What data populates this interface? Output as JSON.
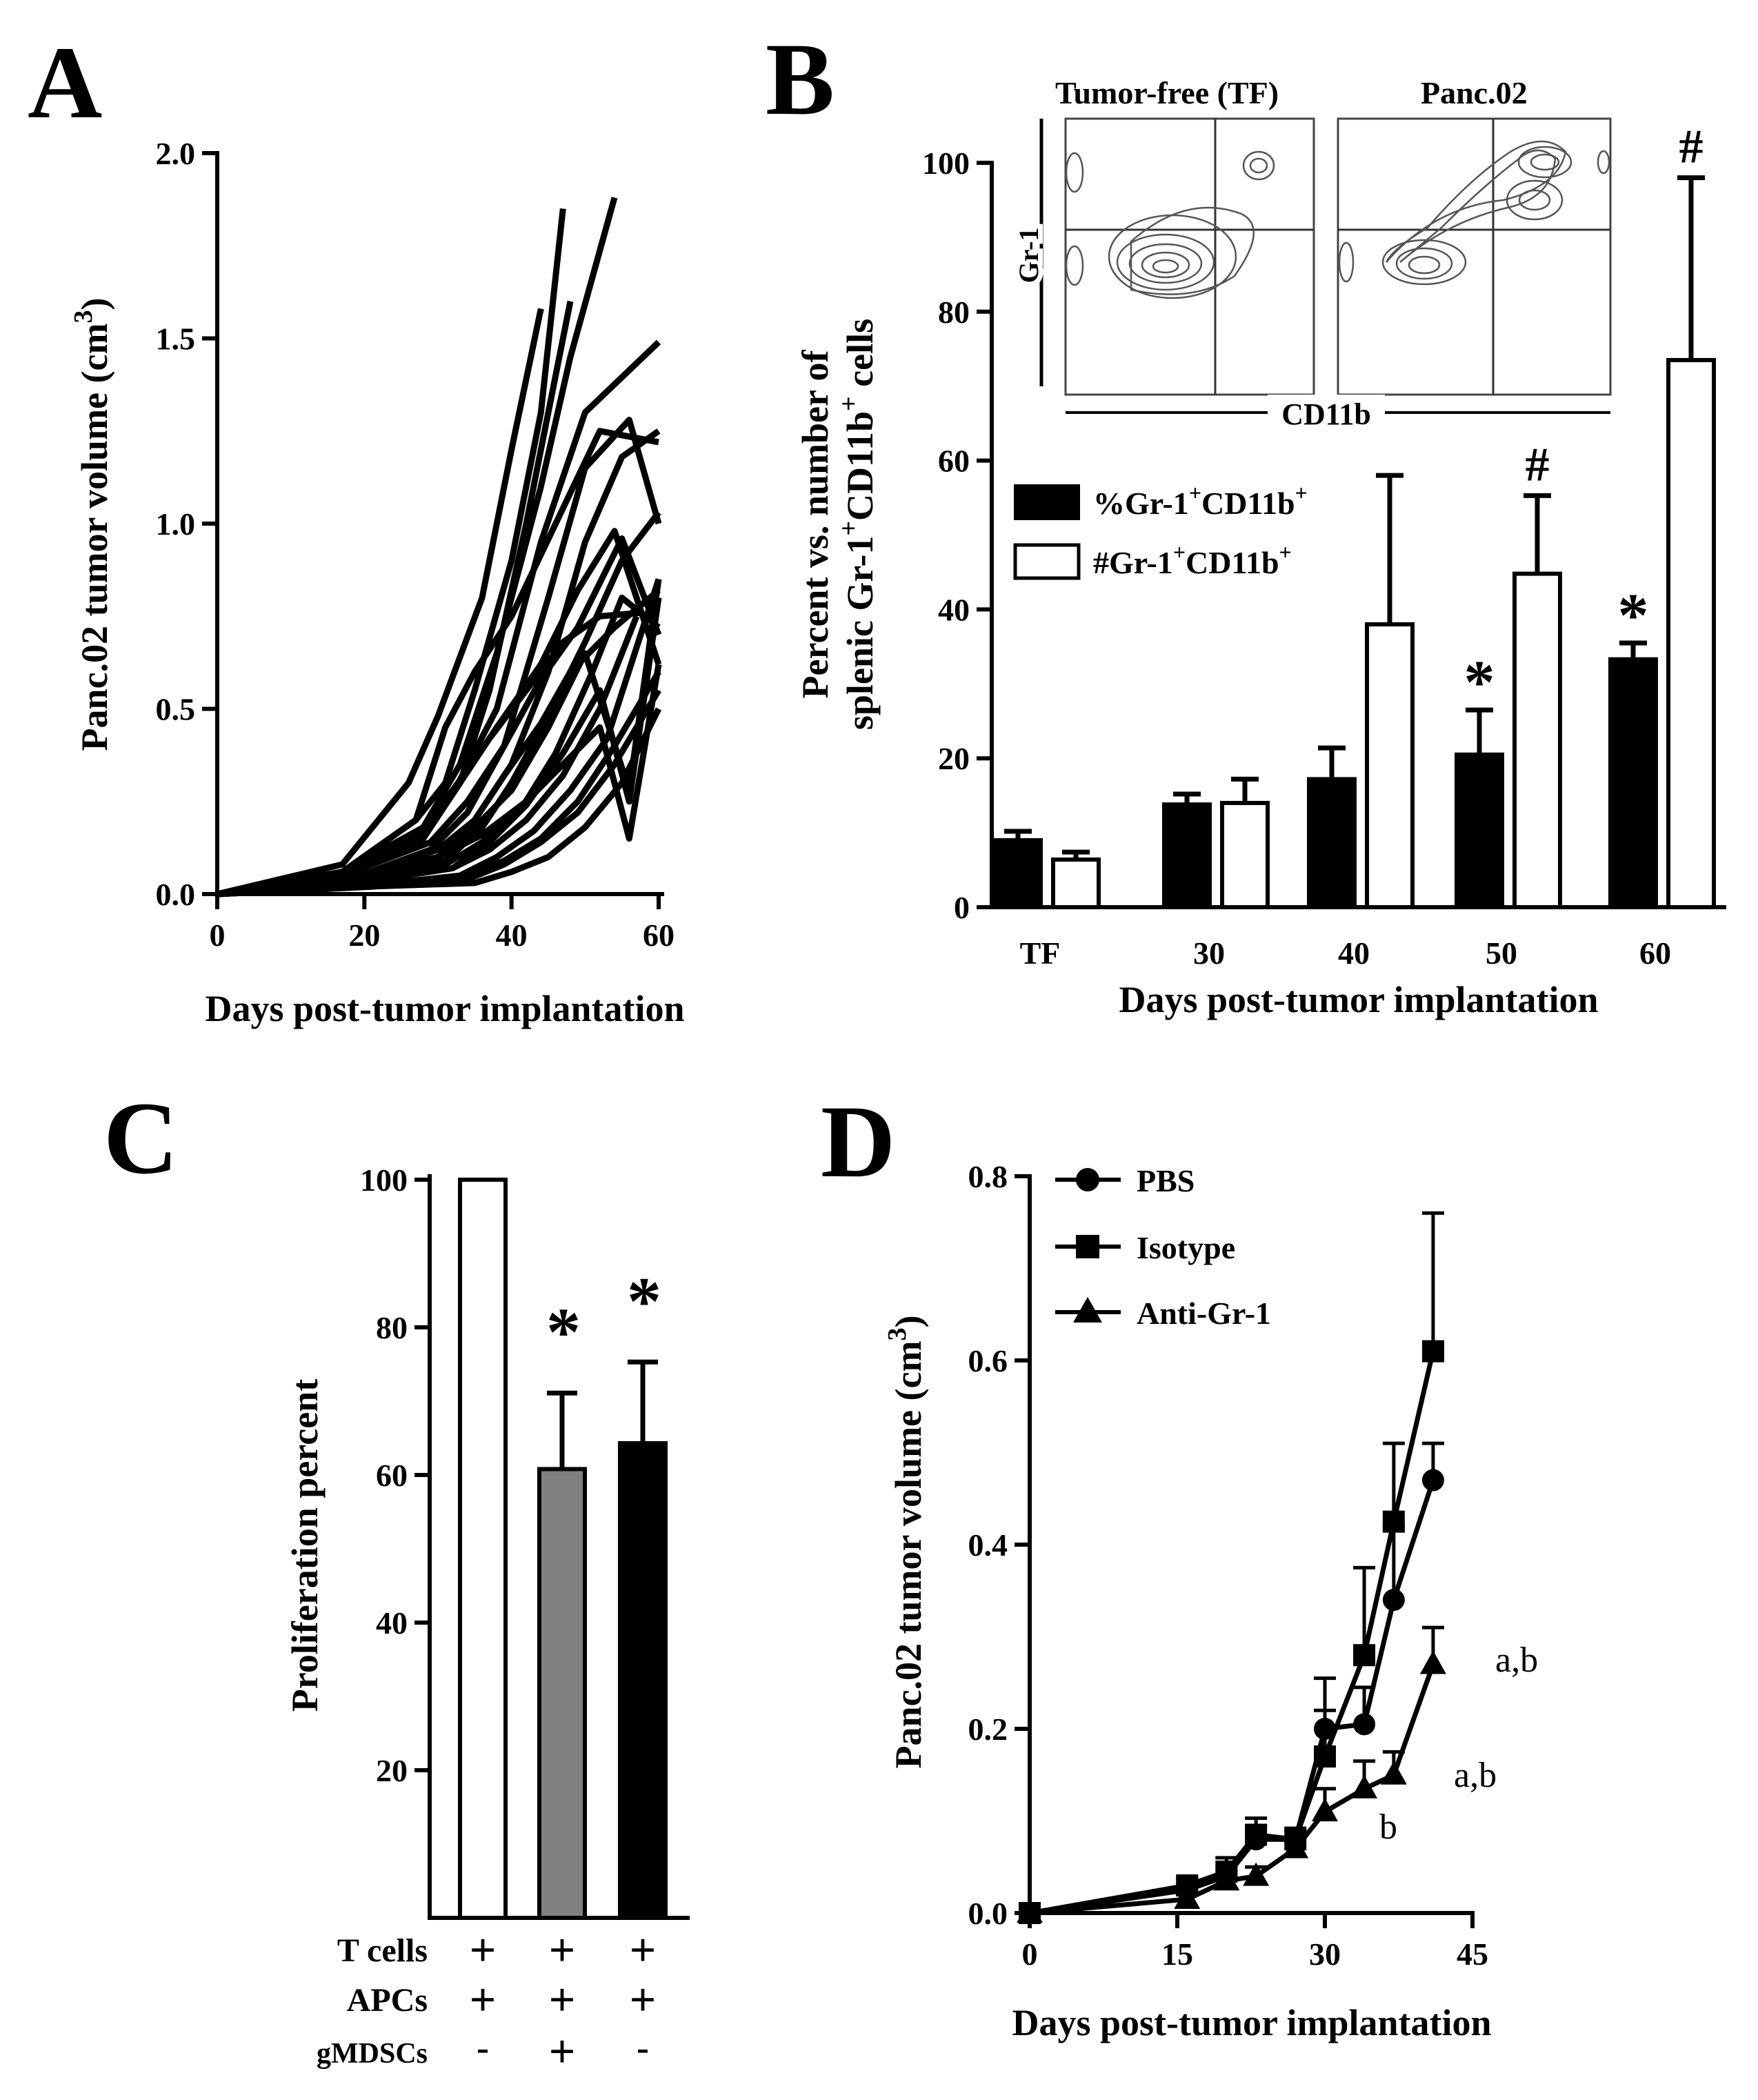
{
  "panels": {
    "A": "A",
    "B": "B",
    "C": "C",
    "D": "D"
  },
  "chart_data": [
    {
      "panel": "A",
      "type": "line",
      "xlabel": "Days post-tumor implantation",
      "ylabel_main": "Panc.02 tumor volume (cm",
      "ylabel_sup": "3",
      "ylabel_end": ")",
      "xlim": [
        0,
        60
      ],
      "ylim": [
        0,
        2.0
      ],
      "xticks": [
        0,
        20,
        40,
        60
      ],
      "xtick_labels": [
        "0",
        "20",
        "40",
        "60"
      ],
      "yticks": [
        0.0,
        0.5,
        1.0,
        1.5,
        2.0
      ],
      "ytick_labels": [
        "0.0",
        "0.5",
        "1.0",
        "1.5",
        "2.0"
      ],
      "series": [
        {
          "x": [
            0,
            17,
            27,
            31,
            35,
            40,
            44,
            47
          ],
          "y": [
            0,
            0.06,
            0.2,
            0.3,
            0.55,
            0.9,
            1.3,
            1.85
          ]
        },
        {
          "x": [
            0,
            17,
            28,
            33,
            38,
            44,
            48,
            54
          ],
          "y": [
            0,
            0.05,
            0.18,
            0.35,
            0.65,
            1.1,
            1.45,
            1.88
          ]
        },
        {
          "x": [
            0,
            17,
            26,
            30,
            36,
            40,
            44
          ],
          "y": [
            0,
            0.08,
            0.3,
            0.48,
            0.8,
            1.2,
            1.58
          ]
        },
        {
          "x": [
            0,
            18,
            28,
            33,
            37,
            42,
            48
          ],
          "y": [
            0,
            0.05,
            0.17,
            0.3,
            0.55,
            1.0,
            1.6
          ]
        },
        {
          "x": [
            0,
            18,
            27,
            32,
            38,
            44,
            50,
            60
          ],
          "y": [
            0,
            0.05,
            0.15,
            0.27,
            0.5,
            0.95,
            1.3,
            1.49
          ]
        },
        {
          "x": [
            0,
            18,
            29,
            34,
            39,
            45,
            50,
            56,
            60
          ],
          "y": [
            0,
            0.04,
            0.12,
            0.22,
            0.4,
            0.8,
            1.15,
            1.28,
            1.0
          ]
        },
        {
          "x": [
            0,
            17,
            27,
            31,
            35,
            40,
            46,
            52,
            60
          ],
          "y": [
            0,
            0.06,
            0.2,
            0.45,
            0.6,
            0.75,
            1.0,
            1.25,
            1.22
          ]
        },
        {
          "x": [
            0,
            18,
            30,
            35,
            40,
            45,
            50,
            55,
            60
          ],
          "y": [
            0,
            0.04,
            0.12,
            0.2,
            0.35,
            0.6,
            0.95,
            1.18,
            1.25
          ]
        },
        {
          "x": [
            0,
            17,
            28,
            33,
            38,
            44,
            49,
            54,
            60
          ],
          "y": [
            0,
            0.05,
            0.15,
            0.3,
            0.45,
            0.62,
            0.82,
            0.98,
            0.62
          ]
        },
        {
          "x": [
            0,
            18,
            30,
            35,
            40,
            45,
            50,
            56,
            60
          ],
          "y": [
            0,
            0.04,
            0.1,
            0.18,
            0.28,
            0.45,
            0.65,
            0.28,
            0.85
          ]
        },
        {
          "x": [
            0,
            18,
            31,
            36,
            41,
            46,
            51,
            55,
            60
          ],
          "y": [
            0,
            0.03,
            0.08,
            0.14,
            0.22,
            0.38,
            0.6,
            0.8,
            0.72
          ]
        },
        {
          "x": [
            0,
            19,
            32,
            37,
            42,
            47,
            52,
            57
          ],
          "y": [
            0,
            0.03,
            0.07,
            0.12,
            0.2,
            0.32,
            0.5,
            0.75
          ]
        },
        {
          "x": [
            0,
            19,
            33,
            38,
            43,
            48,
            53,
            60
          ],
          "y": [
            0,
            0.02,
            0.05,
            0.1,
            0.17,
            0.28,
            0.42,
            0.85
          ]
        },
        {
          "x": [
            0,
            18,
            30,
            36,
            42,
            47,
            52,
            56,
            60
          ],
          "y": [
            0,
            0.04,
            0.1,
            0.16,
            0.25,
            0.35,
            0.45,
            0.15,
            0.62
          ]
        },
        {
          "x": [
            0,
            20,
            34,
            39,
            44,
            49,
            54,
            60
          ],
          "y": [
            0,
            0.02,
            0.04,
            0.08,
            0.14,
            0.22,
            0.35,
            0.55
          ]
        },
        {
          "x": [
            0,
            20,
            35,
            40,
            45,
            50,
            55,
            60
          ],
          "y": [
            0,
            0.02,
            0.03,
            0.06,
            0.1,
            0.18,
            0.3,
            0.5
          ]
        },
        {
          "x": [
            0,
            17,
            29,
            34,
            39,
            44,
            49,
            55,
            60
          ],
          "y": [
            0,
            0.05,
            0.14,
            0.25,
            0.4,
            0.58,
            0.72,
            0.96,
            0.7
          ]
        },
        {
          "x": [
            0,
            18,
            31,
            36,
            40,
            45,
            50,
            55,
            60
          ],
          "y": [
            0,
            0.04,
            0.09,
            0.18,
            0.3,
            0.48,
            0.68,
            0.9,
            1.03
          ]
        },
        {
          "x": [
            0,
            19,
            32,
            37,
            42,
            47,
            52,
            56,
            60
          ],
          "y": [
            0,
            0.03,
            0.07,
            0.14,
            0.24,
            0.38,
            0.55,
            0.25,
            0.8
          ]
        },
        {
          "x": [
            0,
            21,
            34,
            39,
            44,
            49,
            54,
            60
          ],
          "y": [
            0,
            0.02,
            0.05,
            0.09,
            0.15,
            0.25,
            0.4,
            0.6
          ]
        },
        {
          "x": [
            0,
            17,
            28,
            32,
            37,
            42,
            47,
            52,
            58
          ],
          "y": [
            0,
            0.06,
            0.18,
            0.28,
            0.42,
            0.55,
            0.68,
            0.75,
            0.76
          ]
        },
        {
          "x": [
            0,
            18,
            30,
            35,
            39,
            44,
            48,
            54,
            60
          ],
          "y": [
            0,
            0.04,
            0.1,
            0.2,
            0.32,
            0.46,
            0.6,
            0.72,
            0.82
          ]
        }
      ]
    },
    {
      "panel": "B",
      "type": "bar",
      "xlabel": "Days post-tumor implantation",
      "ylabel_line1": "Percent vs. number of",
      "ylabel_line2_a": "splenic Gr-1",
      "ylabel_line2_sup1": "+",
      "ylabel_line2_b": "CD11b",
      "ylabel_line2_sup2": "+",
      "ylabel_line2_c": " cells",
      "ylim": [
        0,
        100
      ],
      "yticks": [
        0,
        20,
        40,
        60,
        80,
        100
      ],
      "ytick_labels": [
        "0",
        "20",
        "40",
        "60",
        "80",
        "100"
      ],
      "categories": [
        "TF",
        "30",
        "40",
        "50",
        "60"
      ],
      "series": [
        {
          "name": "%Gr-1+CD11b+",
          "legend_main": "%Gr-1",
          "legend_sup1": "+",
          "legend_mid": "CD11b",
          "legend_sup2": "+",
          "fill": "black",
          "values": [
            9,
            13.8,
            17.2,
            20.5,
            33.3
          ],
          "errors": [
            1.2,
            1.4,
            4.2,
            6,
            2.2
          ],
          "marks": [
            "",
            "",
            "",
            "*",
            "*"
          ]
        },
        {
          "name": "#Gr-1+CD11b+",
          "legend_main": "#Gr-1",
          "legend_sup1": "+",
          "legend_mid": "CD11b",
          "legend_sup2": "+",
          "fill": "white",
          "values": [
            6.4,
            14,
            38,
            44.8,
            73.5
          ],
          "errors": [
            1,
            3.2,
            20,
            10.5,
            24.5
          ],
          "marks": [
            "",
            "",
            "",
            "#",
            "#"
          ]
        }
      ],
      "inset": {
        "title_left": "Tumor-free (TF)",
        "title_right": "Panc.02",
        "ylabel": "Gr-1",
        "xlabel": "CD11b"
      }
    },
    {
      "panel": "C",
      "type": "bar",
      "ylabel": "Proliferation percent",
      "ylim": [
        0,
        100
      ],
      "yticks": [
        20,
        40,
        60,
        80,
        100
      ],
      "ytick_labels": [
        "20",
        "40",
        "60",
        "80",
        "100"
      ],
      "values": [
        100,
        60.8,
        64.3
      ],
      "errors": [
        0,
        10.3,
        11
      ],
      "fills": [
        "#ffffff",
        "#808080",
        "#000000"
      ],
      "marks": [
        "",
        "*",
        "*"
      ],
      "conditions": [
        {
          "label": "T cells",
          "signs": [
            "+",
            "+",
            "+"
          ]
        },
        {
          "label": "APCs",
          "signs": [
            "+",
            "+",
            "+"
          ]
        },
        {
          "label": "gMDSCs",
          "signs": [
            "-",
            "+",
            "-"
          ]
        }
      ]
    },
    {
      "panel": "D",
      "type": "line",
      "xlabel": "Days post-tumor implantation",
      "ylabel_main": "Panc.02 tumor volume (cm",
      "ylabel_sup": "3",
      "ylabel_end": ")",
      "xlim": [
        0,
        45
      ],
      "ylim": [
        0,
        0.8
      ],
      "xticks": [
        0,
        15,
        30,
        45
      ],
      "xtick_labels": [
        "0",
        "15",
        "30",
        "45"
      ],
      "yticks": [
        0.0,
        0.2,
        0.4,
        0.6,
        0.8
      ],
      "ytick_labels": [
        "0.0",
        "0.2",
        "0.4",
        "0.6",
        "0.8"
      ],
      "series": [
        {
          "name": "PBS",
          "marker": "circle",
          "x": [
            0,
            16,
            20,
            23,
            27,
            30,
            34,
            37,
            41
          ],
          "y": [
            0,
            0.025,
            0.04,
            0.08,
            0.08,
            0.2,
            0.205,
            0.34,
            0.47
          ],
          "err": [
            0,
            0.008,
            0.01,
            0.015,
            0.01,
            0.055,
            0.04,
            0.08,
            0.04
          ]
        },
        {
          "name": "Isotype",
          "marker": "square",
          "x": [
            0,
            16,
            20,
            23,
            27,
            30,
            34,
            37,
            41
          ],
          "y": [
            0,
            0.03,
            0.045,
            0.085,
            0.08,
            0.17,
            0.28,
            0.425,
            0.61
          ],
          "err": [
            0,
            0.008,
            0.015,
            0.018,
            0.012,
            0.05,
            0.095,
            0.085,
            0.15
          ]
        },
        {
          "name": "Anti-Gr-1",
          "marker": "triangle",
          "x": [
            0,
            16,
            20,
            23,
            27,
            30,
            34,
            37,
            41
          ],
          "y": [
            0,
            0.015,
            0.035,
            0.04,
            0.07,
            0.11,
            0.135,
            0.15,
            0.27
          ],
          "err": [
            0,
            0.005,
            0.01,
            0.01,
            0.012,
            0.025,
            0.03,
            0.025,
            0.04
          ]
        }
      ],
      "annotations": [
        "a,b",
        "a,b",
        "b"
      ]
    }
  ]
}
